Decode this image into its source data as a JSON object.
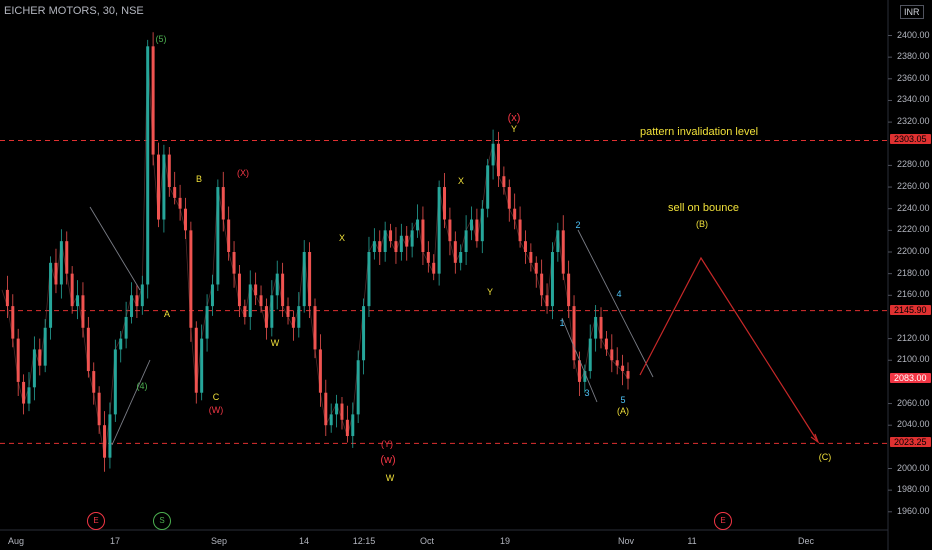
{
  "header": {
    "title": "EICHER MOTORS, 30, NSE",
    "currency": "INR"
  },
  "annotations": {
    "invalidation": "pattern invalidation level",
    "sell": "sell on bounce"
  },
  "chart_data": {
    "type": "candlestick",
    "symbol": "EICHER MOTORS",
    "interval": "30",
    "exchange": "NSE",
    "currency": "INR",
    "y_ticks": [
      "2400.00",
      "2380.00",
      "2360.00",
      "2340.00",
      "2320.00",
      "2280.00",
      "2260.00",
      "2240.00",
      "2220.00",
      "2200.00",
      "2180.00",
      "2160.00",
      "2120.00",
      "2100.00",
      "2060.00",
      "2040.00",
      "2000.00",
      "1980.00",
      "1960.00"
    ],
    "ylim": [
      1950,
      2410
    ],
    "x_ticks": [
      "Aug",
      "17",
      "Sep",
      "14",
      "12:15",
      "Oct",
      "19",
      "Nov",
      "11",
      "Dec"
    ],
    "levels": [
      {
        "label": "2303.05",
        "value": 2303.05,
        "color": "#e03131"
      },
      {
        "label": "2145.90",
        "value": 2145.9,
        "color": "#e03131"
      },
      {
        "label": "2023.25",
        "value": 2023.25,
        "color": "#e03131"
      }
    ],
    "last_price": {
      "label": "2083.00",
      "value": 2083.0,
      "color": "#f23645"
    },
    "price_path": [
      2165,
      2150,
      2120,
      2080,
      2060,
      2075,
      2110,
      2095,
      2130,
      2190,
      2170,
      2210,
      2180,
      2150,
      2160,
      2130,
      2090,
      2070,
      2040,
      2010,
      2050,
      2110,
      2120,
      2140,
      2160,
      2150,
      2170,
      2390,
      2290,
      2230,
      2290,
      2260,
      2250,
      2240,
      2220,
      2130,
      2070,
      2120,
      2150,
      2170,
      2260,
      2230,
      2200,
      2180,
      2150,
      2140,
      2170,
      2160,
      2150,
      2130,
      2160,
      2180,
      2150,
      2140,
      2130,
      2150,
      2200,
      2150,
      2110,
      2070,
      2040,
      2050,
      2060,
      2045,
      2030,
      2050,
      2100,
      2150,
      2200,
      2210,
      2200,
      2220,
      2210,
      2200,
      2215,
      2205,
      2220,
      2230,
      2200,
      2190,
      2180,
      2260,
      2230,
      2210,
      2190,
      2200,
      2220,
      2230,
      2210,
      2240,
      2280,
      2300,
      2270,
      2260,
      2240,
      2230,
      2210,
      2200,
      2190,
      2180,
      2160,
      2150,
      2200,
      2220,
      2180,
      2150,
      2100,
      2080,
      2090,
      2120,
      2140,
      2120,
      2110,
      2100,
      2095,
      2090,
      2083
    ],
    "waves": [
      {
        "label": "(5)",
        "color": "#4caf50"
      },
      {
        "label": "A",
        "color": "#f0e03a"
      },
      {
        "label": "(4)",
        "color": "#4caf50"
      },
      {
        "label": "B",
        "color": "#f0e03a"
      },
      {
        "label": "C",
        "color": "#f0e03a"
      },
      {
        "label": "(W)",
        "color": "#f23645"
      },
      {
        "label": "(X)",
        "color": "#f23645"
      },
      {
        "label": "W",
        "color": "#f0e03a"
      },
      {
        "label": "X",
        "color": "#f0e03a"
      },
      {
        "label": "Y",
        "color": "#f0e03a"
      },
      {
        "label": "(Y)",
        "color": "#f23645"
      },
      {
        "label": "(w)",
        "color": "#f23645"
      },
      {
        "label": "W",
        "color": "#f0e03a"
      },
      {
        "label": "X",
        "color": "#f0e03a"
      },
      {
        "label": "(x)",
        "color": "#f23645"
      },
      {
        "label": "Y",
        "color": "#f0e03a"
      },
      {
        "label": "2",
        "color": "#4fc3f7"
      },
      {
        "label": "1",
        "color": "#4fc3f7"
      },
      {
        "label": "3",
        "color": "#4fc3f7"
      },
      {
        "label": "4",
        "color": "#4fc3f7"
      },
      {
        "label": "5",
        "color": "#4fc3f7"
      },
      {
        "label": "(A)",
        "color": "#f0e03a"
      },
      {
        "label": "(B)",
        "color": "#f0e03a"
      },
      {
        "label": "(C)",
        "color": "#f0e03a"
      }
    ],
    "events": [
      {
        "label": "E",
        "color": "#f23645"
      },
      {
        "label": "S",
        "color": "#4caf50"
      },
      {
        "label": "E",
        "color": "#f23645"
      }
    ],
    "projection": {
      "color": "#c62828"
    }
  }
}
